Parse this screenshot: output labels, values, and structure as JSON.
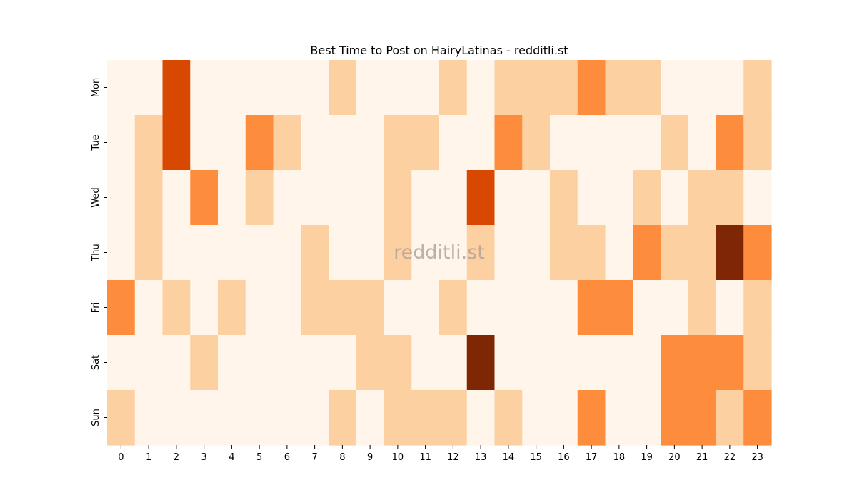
{
  "chart_data": {
    "type": "heatmap",
    "title": "Best Time to Post on HairyLatinas - redditli.st",
    "watermark": "redditli.st",
    "xlabel": "",
    "ylabel": "",
    "x_categories": [
      "0",
      "1",
      "2",
      "3",
      "4",
      "5",
      "6",
      "7",
      "8",
      "9",
      "10",
      "11",
      "12",
      "13",
      "14",
      "15",
      "16",
      "17",
      "18",
      "19",
      "20",
      "21",
      "22",
      "23"
    ],
    "y_categories": [
      "Mon",
      "Tue",
      "Wed",
      "Thu",
      "Fri",
      "Sat",
      "Sun"
    ],
    "values": [
      [
        0,
        0,
        3,
        0,
        0,
        0,
        0,
        0,
        1,
        0,
        0,
        0,
        1,
        0,
        1,
        1,
        1,
        2,
        1,
        1,
        0,
        0,
        0,
        1
      ],
      [
        0,
        1,
        3,
        0,
        0,
        2,
        1,
        0,
        0,
        0,
        1,
        1,
        0,
        0,
        2,
        1,
        0,
        0,
        0,
        0,
        1,
        0,
        2,
        1
      ],
      [
        0,
        1,
        0,
        2,
        0,
        1,
        0,
        0,
        0,
        0,
        1,
        0,
        0,
        3,
        0,
        0,
        1,
        0,
        0,
        1,
        0,
        1,
        1,
        0
      ],
      [
        0,
        1,
        0,
        0,
        0,
        0,
        0,
        1,
        0,
        0,
        1,
        0,
        0,
        1,
        0,
        0,
        1,
        1,
        0,
        2,
        1,
        1,
        4,
        2
      ],
      [
        2,
        0,
        1,
        0,
        1,
        0,
        0,
        1,
        1,
        1,
        0,
        0,
        1,
        0,
        0,
        0,
        0,
        2,
        2,
        0,
        0,
        1,
        0,
        1
      ],
      [
        0,
        0,
        0,
        1,
        0,
        0,
        0,
        0,
        0,
        1,
        1,
        0,
        0,
        4,
        0,
        0,
        0,
        0,
        0,
        0,
        2,
        2,
        2,
        1
      ],
      [
        1,
        0,
        0,
        0,
        0,
        0,
        0,
        0,
        1,
        0,
        1,
        1,
        1,
        0,
        1,
        0,
        0,
        2,
        0,
        0,
        2,
        2,
        1,
        2
      ]
    ],
    "colormap": [
      "#fff5eb",
      "#fdd0a2",
      "#fd8d3c",
      "#d94801",
      "#7f2704"
    ],
    "colorbar": false,
    "grid": false
  }
}
